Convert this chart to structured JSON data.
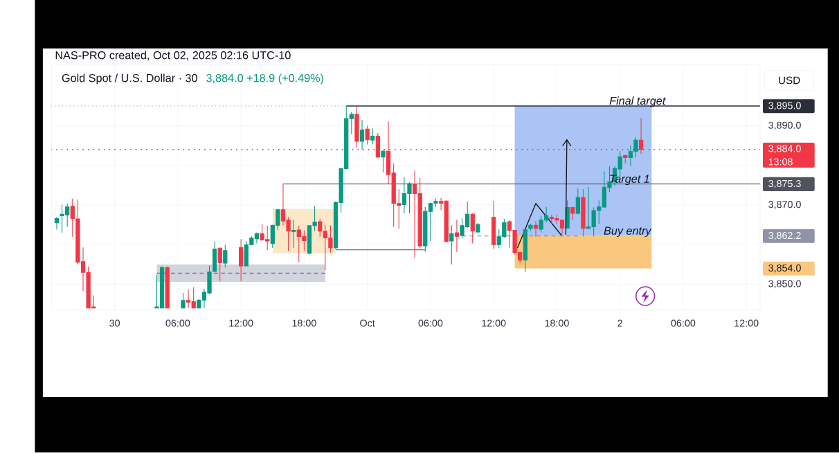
{
  "chart_data": {
    "type": "candlestick",
    "title": "Gold Spot / U.S. Dollar · 30",
    "subtitle": "3,884.0 +18.9 (+0.49%)",
    "ylabel": "USD",
    "x": [
      "2025-09-29T18:30",
      "2025-09-29T19:00",
      "2025-09-29T19:30",
      "2025-09-29T20:00",
      "2025-09-29T20:30",
      "2025-09-29T21:00",
      "2025-09-29T21:30",
      "2025-09-29T22:00",
      "2025-09-30T04:00",
      "2025-09-30T04:30",
      "2025-09-30T05:00",
      "2025-09-30T06:30",
      "2025-09-30T07:00",
      "2025-09-30T07:30",
      "2025-09-30T08:00",
      "2025-09-30T08:30",
      "2025-09-30T09:00",
      "2025-09-30T09:30",
      "2025-09-30T10:00",
      "2025-09-30T10:30",
      "2025-09-30T12:00",
      "2025-09-30T12:30",
      "2025-09-30T13:00",
      "2025-09-30T13:30",
      "2025-09-30T14:00",
      "2025-09-30T14:30",
      "2025-09-30T15:00",
      "2025-09-30T15:30",
      "2025-09-30T16:00",
      "2025-09-30T16:30",
      "2025-09-30T17:00",
      "2025-09-30T17:30",
      "2025-09-30T18:00",
      "2025-09-30T18:30",
      "2025-09-30T19:00",
      "2025-09-30T19:30",
      "2025-09-30T20:00",
      "2025-09-30T20:30",
      "2025-09-30T21:00",
      "2025-09-30T21:30",
      "2025-09-30T22:00",
      "2025-09-30T22:30",
      "2025-09-30T23:00",
      "2025-09-30T23:30",
      "2025-10-01T00:00",
      "2025-10-01T00:30",
      "2025-10-01T01:00",
      "2025-10-01T01:30",
      "2025-10-01T02:00",
      "2025-10-01T02:30",
      "2025-10-01T03:00",
      "2025-10-01T03:30",
      "2025-10-01T04:00",
      "2025-10-01T04:30",
      "2025-10-01T05:00",
      "2025-10-01T05:30",
      "2025-10-01T06:00",
      "2025-10-01T06:30",
      "2025-10-01T07:00",
      "2025-10-01T07:30",
      "2025-10-01T08:00",
      "2025-10-01T08:30",
      "2025-10-01T09:00",
      "2025-10-01T09:30",
      "2025-10-01T10:00",
      "2025-10-01T10:30",
      "2025-10-01T12:00",
      "2025-10-01T12:30",
      "2025-10-01T13:00",
      "2025-10-01T13:30",
      "2025-10-01T14:00",
      "2025-10-01T14:30",
      "2025-10-01T15:00",
      "2025-10-01T15:30",
      "2025-10-01T16:00",
      "2025-10-01T16:30",
      "2025-10-01T17:00",
      "2025-10-01T17:30",
      "2025-10-01T18:00",
      "2025-10-01T18:30",
      "2025-10-01T19:00",
      "2025-10-01T19:30",
      "2025-10-01T20:00",
      "2025-10-01T20:30",
      "2025-10-01T21:00",
      "2025-10-01T21:30",
      "2025-10-01T22:00",
      "2025-10-01T22:30",
      "2025-10-01T23:00",
      "2025-10-01T23:30",
      "2025-10-02T00:00",
      "2025-10-02T00:30",
      "2025-10-02T01:00",
      "2025-10-02T01:30",
      "2025-10-02T02:00"
    ],
    "ohlc": [
      [
        3865.5,
        3867.0,
        3863.8,
        3866.6
      ],
      [
        3867.3,
        3870.1,
        3863.0,
        3867.7
      ],
      [
        3867.5,
        3870.4,
        3864.5,
        3869.5
      ],
      [
        3869.7,
        3871.6,
        3862.0,
        3866.6
      ],
      [
        3866.5,
        3871.4,
        3855.0,
        3855.6
      ],
      [
        3855.7,
        3859.3,
        3848.3,
        3853.0
      ],
      [
        3853.0,
        3854.5,
        3844.0,
        3844.0
      ],
      [
        3844.3,
        3847.2,
        3844.0,
        3844.0
      ],
      [
        3844.0,
        3852.4,
        3844.0,
        3844.3
      ],
      [
        3844.0,
        3854.5,
        3844.0,
        3854.2
      ],
      [
        3854.2,
        3854.5,
        3844.0,
        3844.0
      ],
      [
        3844.0,
        3847.8,
        3844.0,
        3845.9
      ],
      [
        3845.9,
        3848.7,
        3844.0,
        3845.5
      ],
      [
        3845.6,
        3849.3,
        3844.0,
        3844.0
      ],
      [
        3844.0,
        3846.3,
        3844.0,
        3846.0
      ],
      [
        3846.0,
        3848.9,
        3844.0,
        3848.0
      ],
      [
        3847.8,
        3854.7,
        3847.5,
        3853.1
      ],
      [
        3853.2,
        3860.8,
        3853.2,
        3858.9
      ],
      [
        3859.1,
        3859.3,
        3850.8,
        3855.4
      ],
      [
        3855.3,
        3860.0,
        3854.2,
        3858.5
      ],
      [
        3859.3,
        3861.4,
        3850.8,
        3854.6
      ],
      [
        3854.6,
        3860.9,
        3854.6,
        3860.0
      ],
      [
        3860.0,
        3862.1,
        3859.8,
        3861.7
      ],
      [
        3861.5,
        3863.1,
        3860.3,
        3862.8
      ],
      [
        3862.8,
        3865.3,
        3861.0,
        3861.2
      ],
      [
        3861.3,
        3864.8,
        3858.6,
        3860.9
      ],
      [
        3860.3,
        3865.0,
        3859.2,
        3864.9
      ],
      [
        3864.9,
        3869.1,
        3863.7,
        3868.8
      ],
      [
        3868.8,
        3875.3,
        3864.9,
        3866.0
      ],
      [
        3866.2,
        3867.0,
        3858.4,
        3863.4
      ],
      [
        3863.3,
        3866.2,
        3859.2,
        3863.6
      ],
      [
        3863.7,
        3864.8,
        3855.6,
        3862.0
      ],
      [
        3862.1,
        3863.6,
        3858.4,
        3861.0
      ],
      [
        3857.8,
        3864.9,
        3857.5,
        3864.8
      ],
      [
        3864.8,
        3869.8,
        3863.4,
        3865.7
      ],
      [
        3865.8,
        3866.5,
        3862.0,
        3863.4
      ],
      [
        3863.4,
        3864.9,
        3853.5,
        3861.7
      ],
      [
        3861.7,
        3864.9,
        3858.0,
        3859.2
      ],
      [
        3859.2,
        3871.0,
        3858.9,
        3870.6
      ],
      [
        3870.6,
        3879.2,
        3868.1,
        3879.2
      ],
      [
        3879.2,
        3895.0,
        3879.0,
        3891.8
      ],
      [
        3891.8,
        3893.5,
        3887.9,
        3892.9
      ],
      [
        3892.9,
        3894.9,
        3884.6,
        3886.1
      ],
      [
        3886.1,
        3891.5,
        3884.0,
        3888.9
      ],
      [
        3889.2,
        3890.0,
        3885.3,
        3886.5
      ],
      [
        3886.4,
        3889.3,
        3885.3,
        3887.4
      ],
      [
        3887.4,
        3888.2,
        3881.8,
        3882.1
      ],
      [
        3882.1,
        3884.0,
        3878.2,
        3883.6
      ],
      [
        3883.6,
        3891.1,
        3875.4,
        3877.7
      ],
      [
        3878.1,
        3880.5,
        3864.5,
        3870.4
      ],
      [
        3870.4,
        3874.0,
        3864.0,
        3869.9
      ],
      [
        3870.1,
        3877.1,
        3867.9,
        3872.9
      ],
      [
        3872.9,
        3875.8,
        3867.9,
        3875.4
      ],
      [
        3875.3,
        3878.7,
        3856.7,
        3872.9
      ],
      [
        3872.9,
        3876.8,
        3859.2,
        3859.7
      ],
      [
        3859.7,
        3869.5,
        3858.2,
        3868.4
      ],
      [
        3868.4,
        3870.6,
        3860.9,
        3870.4
      ],
      [
        3870.5,
        3871.6,
        3869.5,
        3870.9
      ],
      [
        3870.9,
        3871.8,
        3868.7,
        3870.5
      ],
      [
        3871.0,
        3871.2,
        3860.6,
        3860.8
      ],
      [
        3860.9,
        3864.9,
        3855.0,
        3862.8
      ],
      [
        3863.0,
        3866.3,
        3858.1,
        3862.1
      ],
      [
        3862.3,
        3866.7,
        3861.7,
        3864.8
      ],
      [
        3864.5,
        3870.9,
        3864.2,
        3867.7
      ],
      [
        3867.7,
        3867.9,
        3860.3,
        3863.4
      ],
      [
        3863.2,
        3865.5,
        3862.8,
        3865.1
      ],
      [
        3866.9,
        3871.0,
        3858.9,
        3860.0
      ],
      [
        3860.0,
        3863.9,
        3859.2,
        3862.0
      ],
      [
        3862.0,
        3866.5,
        3861.7,
        3865.6
      ],
      [
        3865.8,
        3866.2,
        3859.2,
        3863.6
      ],
      [
        3863.6,
        3863.7,
        3857.5,
        3858.0
      ],
      [
        3858.0,
        3858.2,
        3855.5,
        3856.1
      ],
      [
        3856.1,
        3863.8,
        3853.1,
        3863.8
      ],
      [
        3864.1,
        3865.3,
        3863.4,
        3864.9
      ],
      [
        3864.9,
        3865.9,
        3862.0,
        3864.1
      ],
      [
        3863.9,
        3867.3,
        3863.1,
        3866.2
      ],
      [
        3866.2,
        3869.5,
        3865.6,
        3867.3
      ],
      [
        3866.9,
        3867.6,
        3865.3,
        3866.6
      ],
      [
        3866.6,
        3867.5,
        3865.3,
        3866.2
      ],
      [
        3866.2,
        3866.3,
        3862.6,
        3864.2
      ],
      [
        3864.2,
        3871.2,
        3864.1,
        3869.4
      ],
      [
        3869.4,
        3869.5,
        3866.2,
        3867.9
      ],
      [
        3867.9,
        3874.2,
        3867.6,
        3871.9
      ],
      [
        3871.9,
        3874.0,
        3862.1,
        3864.1
      ],
      [
        3864.1,
        3874.5,
        3863.9,
        3864.5
      ],
      [
        3864.5,
        3869.4,
        3862.1,
        3868.6
      ],
      [
        3868.6,
        3871.2,
        3865.3,
        3869.5
      ],
      [
        3869.5,
        3878.5,
        3869.3,
        3874.5
      ],
      [
        3874.4,
        3879.8,
        3873.3,
        3875.9
      ],
      [
        3875.9,
        3879.8,
        3874.8,
        3879.2
      ],
      [
        3879.1,
        3883.6,
        3877.3,
        3882.2
      ],
      [
        3882.5,
        3882.7,
        3880.5,
        3882.0
      ],
      [
        3882.0,
        3885.1,
        3879.8,
        3883.5
      ],
      [
        3883.5,
        3887.1,
        3882.0,
        3886.4
      ],
      [
        3886.4,
        3892.0,
        3882.9,
        3884.0
      ]
    ],
    "colors": [
      "#089981",
      "#089981",
      "#089981",
      "#f23645",
      "#f23645",
      "#f23645",
      "#f23645",
      "#f23645",
      "#089981",
      "#089981",
      "#f23645",
      "#089981",
      "#f23645",
      "#f23645",
      "#089981",
      "#089981",
      "#089981",
      "#089981",
      "#f23645",
      "#089981",
      "#f23645",
      "#089981",
      "#089981",
      "#089981",
      "#f23645",
      "#f23645",
      "#089981",
      "#089981",
      "#f23645",
      "#f23645",
      "#089981",
      "#f23645",
      "#f23645",
      "#089981",
      "#089981",
      "#f23645",
      "#f23645",
      "#f23645",
      "#089981",
      "#089981",
      "#089981",
      "#089981",
      "#f23645",
      "#089981",
      "#f23645",
      "#089981",
      "#f23645",
      "#089981",
      "#f23645",
      "#f23645",
      "#f23645",
      "#089981",
      "#089981",
      "#f23645",
      "#f23645",
      "#089981",
      "#089981",
      "#089981",
      "#f23645",
      "#f23645",
      "#089981",
      "#f23645",
      "#089981",
      "#089981",
      "#f23645",
      "#089981",
      "#f23645",
      "#089981",
      "#089981",
      "#f23645",
      "#f23645",
      "#f23645",
      "#089981",
      "#089981",
      "#f23645",
      "#089981",
      "#089981",
      "#f23645",
      "#f23645",
      "#f23645",
      "#089981",
      "#f23645",
      "#089981",
      "#f23645",
      "#089981",
      "#089981",
      "#089981",
      "#089981",
      "#089981",
      "#089981",
      "#089981",
      "#f23645",
      "#089981",
      "#089981",
      "#f23645"
    ],
    "xlim": [
      "2025-09-29T18:00",
      "2025-10-02T13:18"
    ],
    "xticks": [
      {
        "value": "2025-09-30T00:00",
        "label": "30"
      },
      {
        "value": "2025-09-30T06:00",
        "label": "06:00"
      },
      {
        "value": "2025-09-30T12:00",
        "label": "12:00"
      },
      {
        "value": "2025-09-30T18:00",
        "label": "18:00"
      },
      {
        "value": "2025-10-01T00:00",
        "label": "Oct"
      },
      {
        "value": "2025-10-01T06:00",
        "label": "06:00"
      },
      {
        "value": "2025-10-01T12:00",
        "label": "12:00"
      },
      {
        "value": "2025-10-01T18:00",
        "label": "18:00"
      },
      {
        "value": "2025-10-02T00:00",
        "label": "2"
      },
      {
        "value": "2025-10-02T06:00",
        "label": "06:00"
      },
      {
        "value": "2025-10-02T12:00",
        "label": "12:00"
      }
    ],
    "ylim": [
      3843.5,
      3905.5
    ],
    "yticks": [
      {
        "value": 3850,
        "label": "3,850.0"
      },
      {
        "value": 3854.0,
        "label": "3,854.0"
      },
      {
        "value": 3860,
        "label": null
      },
      {
        "value": 3862.2,
        "label": "3,862.2"
      },
      {
        "value": 3870,
        "label": "3,870.0"
      },
      {
        "value": 3880,
        "label": null
      },
      {
        "value": 3890,
        "label": "3,890.0"
      }
    ],
    "grid": true,
    "series": [
      {
        "type": "line",
        "x": [
          "2025-09-30T04:00",
          "2025-09-30T20:00"
        ],
        "values": [
          null,
          null
        ],
        "lower": [
          3850.6,
          3850.6
        ],
        "upper": [
          3855.0,
          3855.0
        ],
        "color": "#d1d4dc"
      },
      {
        "type": "line",
        "x": [
          "2025-09-30T15:00",
          "2025-09-30T21:00"
        ],
        "values": [
          null,
          null
        ],
        "lower": [
          3857.8,
          3857.8
        ],
        "upper": [
          3869.0,
          3869.0
        ],
        "color": "#fce7c8"
      },
      {
        "type": "line",
        "x": [
          "2025-10-01T14:00",
          "2025-10-02T03:00"
        ],
        "values": [
          null,
          null
        ],
        "lower": [
          3862.2,
          3862.2
        ],
        "upper": [
          3895.0,
          3895.0
        ],
        "color": "#a9c4f5"
      },
      {
        "type": "line",
        "x": [
          "2025-10-01T14:00",
          "2025-10-02T03:00"
        ],
        "values": [
          null,
          null
        ],
        "lower": [
          3854.0,
          3854.0
        ],
        "upper": [
          3862.2,
          3862.2
        ],
        "color": "#f9c77d"
      },
      {
        "type": "line",
        "x": [
          "2025-09-30T22:00",
          "2025-10-02T13:18"
        ],
        "values": [
          3895.0,
          3895.0
        ],
        "color": "#2a2e39",
        "line_style": "solid",
        "value_labels": [
          null,
          "3,895.0"
        ]
      },
      {
        "type": "line",
        "x": [
          "2025-09-30T16:00",
          "2025-10-02T13:18"
        ],
        "values": [
          3875.3,
          3875.3
        ],
        "color": "#50535e",
        "line_style": "solid",
        "value_labels": [
          null,
          "3,875.3"
        ]
      },
      {
        "type": "line",
        "x": [
          "2025-09-30T21:00",
          "2025-10-01T05:30"
        ],
        "values": [
          3858.7,
          3858.7
        ],
        "color": "#6a6d78",
        "line_style": "solid"
      },
      {
        "type": "line",
        "x": [
          "2025-09-29T18:00",
          "2025-09-30T22:00"
        ],
        "values": [
          3895.0,
          3895.0
        ],
        "color": "#a3a6af",
        "line_style": "dotted"
      },
      {
        "type": "line",
        "x": [
          "2025-09-30T04:00",
          "2025-09-30T20:00"
        ],
        "values": [
          3852.8,
          3852.8
        ],
        "color": "#9c4fd0",
        "line_style": "dashed"
      },
      {
        "type": "line",
        "x": [
          "2025-10-01T09:00",
          "2025-10-01T20:00"
        ],
        "values": [
          3862.2,
          3862.2
        ],
        "color": "#8f92a8",
        "line_style": "dashed"
      },
      {
        "type": "line",
        "x": [
          "2025-10-01T14:15",
          "2025-10-01T16:00",
          "2025-10-01T18:27"
        ],
        "values": [
          3859.1,
          3870.4,
          3862.3
        ],
        "color": "#131722",
        "line_style": "solid"
      }
    ],
    "ref_lines": [
      {
        "axis": "y",
        "value": 3884.0,
        "label": "3,884.0 13:08",
        "color": "#f23645",
        "line_style": "dotted"
      }
    ],
    "annotations": [
      "NAS-PRO created, Oct 02, 2025 02:16 UTC-10",
      {
        "text": "Final target",
        "x": "2025-10-02T01:39",
        "y": 3895.0
      },
      {
        "text": "Target 1",
        "x": "2025-10-02T00:54",
        "y": 3875.3
      },
      {
        "text": "Buy entry",
        "x": "2025-10-02T00:42",
        "y": 3862.2
      }
    ]
  }
}
